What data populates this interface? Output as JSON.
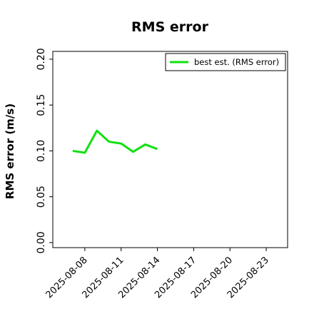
{
  "chart_data": {
    "type": "line",
    "title": "RMS error",
    "ylabel": "RMS error (m/s)",
    "x": [
      "2025-08-07",
      "2025-08-08",
      "2025-08-09",
      "2025-08-10",
      "2025-08-11",
      "2025-08-12",
      "2025-08-13",
      "2025-08-14"
    ],
    "series": [
      {
        "name": "best est. (RMS error)",
        "color": "#11e011",
        "values": [
          0.1,
          0.098,
          0.122,
          0.11,
          0.108,
          0.099,
          0.107,
          0.102
        ]
      }
    ],
    "xlim": [
      "2025-08-05",
      "2025-08-25"
    ],
    "xticks": [
      "2025-08-08",
      "2025-08-11",
      "2025-08-14",
      "2025-08-17",
      "2025-08-20",
      "2025-08-23"
    ],
    "xtick_colors": [
      "#000000",
      "#000000",
      "#228b22",
      "#000000",
      "#000000",
      "#000000"
    ],
    "ylim": [
      -0.0055,
      0.2085
    ],
    "yticks": [
      {
        "value": 0,
        "label": "0.00"
      },
      {
        "value": 0.05,
        "label": "0.05"
      },
      {
        "value": 0.1,
        "label": "0.10"
      },
      {
        "value": 0.15,
        "label": "0.15"
      },
      {
        "value": 0.2,
        "label": "0.20"
      }
    ],
    "legend": "upper right"
  }
}
